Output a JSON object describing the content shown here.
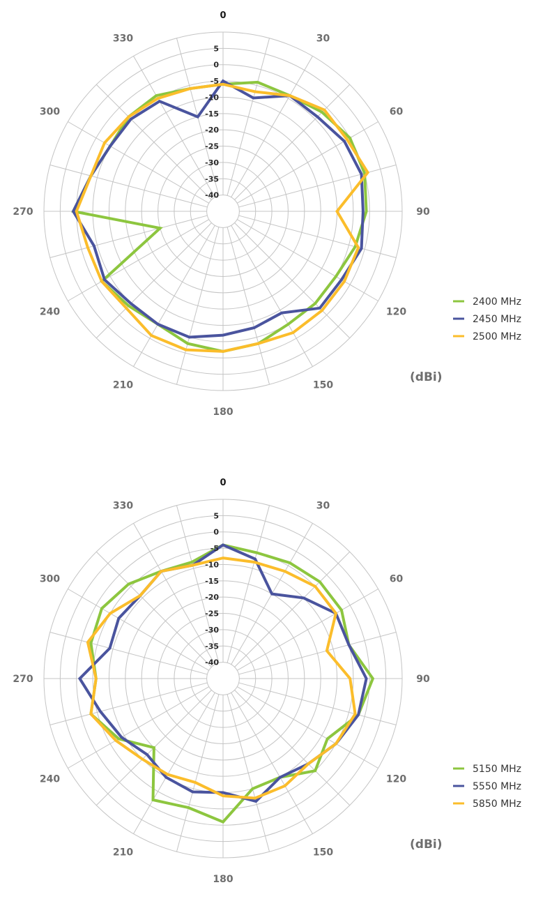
{
  "chart_data": [
    {
      "type": "radar",
      "title": "",
      "unit_label": "(dBi)",
      "angle_ticks": [
        "0",
        "30",
        "60",
        "90",
        "120",
        "150",
        "180",
        "210",
        "240",
        "270",
        "300",
        "330"
      ],
      "radial_ticks": [
        "5",
        "0",
        "-5",
        "-10",
        "-15",
        "-20",
        "-25",
        "-30",
        "-35",
        "-40"
      ],
      "rlim": [
        -45,
        10
      ],
      "angles_deg": [
        0,
        15,
        30,
        45,
        60,
        75,
        90,
        105,
        120,
        135,
        150,
        165,
        180,
        195,
        210,
        225,
        240,
        255,
        270,
        285,
        300,
        315,
        330,
        345
      ],
      "grid": true,
      "legend": "right",
      "series": [
        {
          "name": "2400 MHz",
          "color": "#8dc63f",
          "values": [
            -6,
            -4,
            -4,
            -2,
            0,
            0,
            -1,
            -3,
            -5,
            -5,
            -5,
            -3,
            -2,
            -3,
            -5,
            -4,
            -2,
            -25,
            1,
            -3,
            -5,
            -4,
            -4,
            -6
          ]
        },
        {
          "name": "2450 MHz",
          "color": "#4a549e",
          "values": [
            -5,
            -9,
            -4,
            -4,
            -2,
            -1,
            -2,
            -1,
            -3,
            -3,
            -9,
            -8,
            -7,
            -5,
            -5,
            -5,
            -3,
            -4,
            1,
            -3,
            -5,
            -5,
            -6,
            -15
          ]
        },
        {
          "name": "2500 MHz",
          "color": "#fbbd2b",
          "values": [
            -6,
            -7,
            -4,
            -1,
            -1,
            1,
            -10,
            -2,
            -2,
            -2,
            -2,
            -3,
            -2,
            -1,
            -1,
            -3,
            -2,
            -2,
            0,
            -3,
            -3,
            -4,
            -5,
            -6
          ]
        }
      ]
    },
    {
      "type": "radar",
      "title": "",
      "unit_label": "(dBi)",
      "angle_ticks": [
        "0",
        "30",
        "60",
        "90",
        "120",
        "150",
        "180",
        "210",
        "240",
        "270",
        "300",
        "330"
      ],
      "radial_ticks": [
        "5",
        "0",
        "-5",
        "-10",
        "-15",
        "-20",
        "-25",
        "-30",
        "-35",
        "-40"
      ],
      "rlim": [
        -45,
        10
      ],
      "angles_deg": [
        0,
        15,
        30,
        45,
        60,
        75,
        90,
        105,
        120,
        135,
        150,
        165,
        180,
        195,
        210,
        225,
        240,
        255,
        270,
        285,
        300,
        315,
        330,
        345
      ],
      "grid": true,
      "legend": "right",
      "series": [
        {
          "name": "5150 MHz",
          "color": "#8dc63f",
          "values": [
            -4,
            -5,
            -4,
            -3,
            -3,
            -5,
            1,
            -2,
            -8,
            -5,
            -10,
            -10,
            -1,
            -4,
            -2,
            -15,
            -8,
            -3,
            -6,
            -3,
            -2,
            -4,
            -7,
            -8
          ]
        },
        {
          "name": "5550 MHz",
          "color": "#4a549e",
          "values": [
            -4,
            -7,
            -15,
            -10,
            -5,
            -5,
            -1,
            -2,
            -5,
            -8,
            -10,
            -6,
            -10,
            -9,
            -10,
            -12,
            -9,
            -6,
            -1,
            -9,
            -8,
            -9,
            -7,
            -9
          ]
        },
        {
          "name": "5850 MHz",
          "color": "#fbbd2b",
          "values": [
            -8,
            -8,
            -7,
            -5,
            -5,
            -12,
            -6,
            -3,
            -5,
            -8,
            -7,
            -7,
            -9,
            -12,
            -11,
            -10,
            -7,
            -3,
            -6,
            -2,
            -5,
            -9,
            -7,
            -9
          ]
        }
      ]
    }
  ]
}
